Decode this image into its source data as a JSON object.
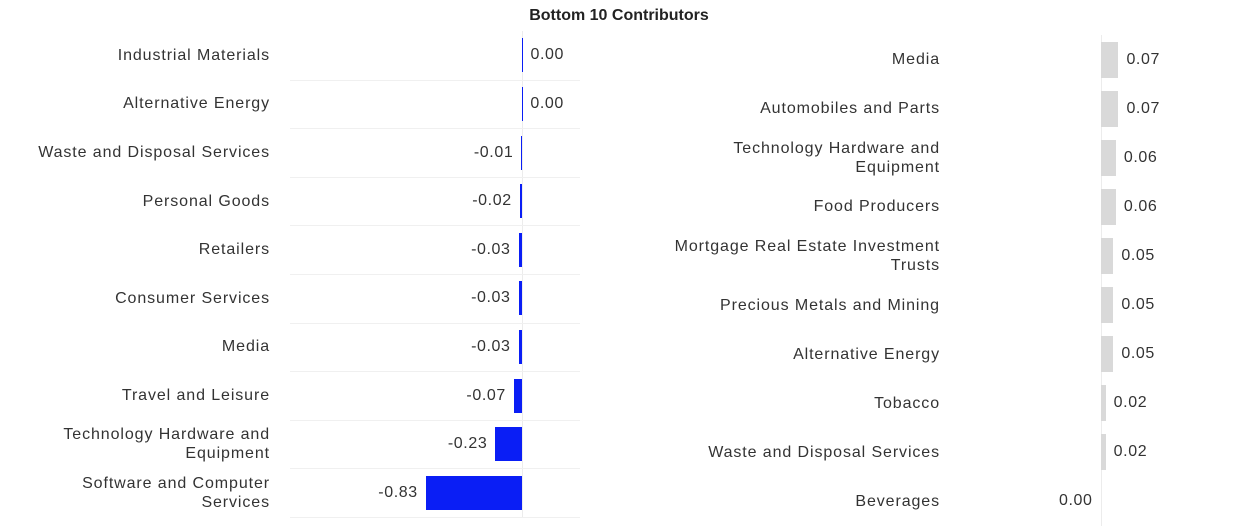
{
  "chart_data": [
    {
      "type": "bar",
      "orientation": "horizontal",
      "title": "Bottom 10 Contributors",
      "categories": [
        "Industrial Materials",
        "Alternative Energy",
        "Waste and Disposal Services",
        "Personal Goods",
        "Retailers",
        "Consumer Services",
        "Media",
        "Travel and Leisure",
        "Technology Hardware and Equipment",
        "Software and Computer Services"
      ],
      "values": [
        0.004,
        0.003,
        -0.006,
        -0.02,
        -0.03,
        -0.03,
        -0.03,
        -0.07,
        -0.23,
        -0.83
      ],
      "value_labels": [
        "0.00",
        "0.00",
        "-0.01",
        "-0.02",
        "-0.03",
        "-0.03",
        "-0.03",
        "-0.07",
        "-0.23",
        "-0.83"
      ],
      "color": "#0a1ef5",
      "xlim": [
        -2.0,
        0.5
      ]
    },
    {
      "type": "bar",
      "orientation": "horizontal",
      "categories": [
        "Media",
        "Automobiles and Parts",
        "Technology Hardware and Equipment",
        "Food Producers",
        "Mortgage Real Estate Investment Trusts",
        "Precious Metals and Mining",
        "Alternative Energy",
        "Tobacco",
        "Waste and Disposal Services",
        "Beverages"
      ],
      "values": [
        0.07,
        0.07,
        0.06,
        0.06,
        0.05,
        0.05,
        0.05,
        0.02,
        0.02,
        0
      ],
      "value_labels": [
        "0.07",
        "0.07",
        "0.06",
        "0.06",
        "0.05",
        "0.05",
        "0.05",
        "0.02",
        "0.02",
        "0.00"
      ],
      "color": "#d9d9d9",
      "xlim": [
        -0.55,
        0.35
      ]
    }
  ]
}
